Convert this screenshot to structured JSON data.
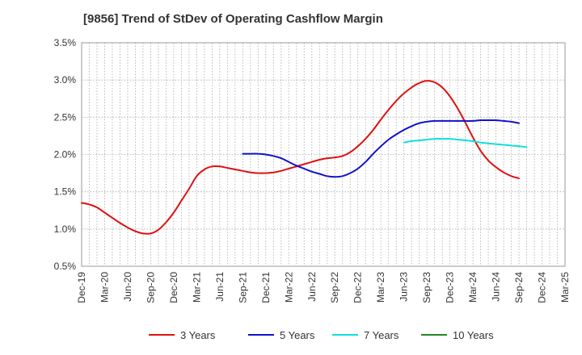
{
  "chart_data": {
    "type": "line",
    "title": "[9856]  Trend of StDev of Operating Cashflow Margin",
    "xlabel": "",
    "ylabel": "",
    "x_ticks": [
      "Dec-19",
      "Mar-20",
      "Jun-20",
      "Sep-20",
      "Dec-20",
      "Mar-21",
      "Jun-21",
      "Sep-21",
      "Dec-21",
      "Mar-22",
      "Jun-22",
      "Sep-22",
      "Dec-22",
      "Mar-23",
      "Jun-23",
      "Sep-23",
      "Dec-23",
      "Mar-24",
      "Jun-24",
      "Sep-24",
      "Dec-24",
      "Mar-25"
    ],
    "y_ticks": [
      "0.5%",
      "1.0%",
      "1.5%",
      "2.0%",
      "2.5%",
      "3.0%",
      "3.5%"
    ],
    "ylim": [
      0.5,
      3.5
    ],
    "grid": true,
    "legend_position": "bottom",
    "series": [
      {
        "name": "3 Years",
        "color": "#dd1111",
        "values": [
          [
            "Dec-19",
            1.35
          ],
          [
            "Jan-20",
            1.33
          ],
          [
            "Feb-20",
            1.29
          ],
          [
            "Mar-20",
            1.22
          ],
          [
            "Apr-20",
            1.15
          ],
          [
            "May-20",
            1.08
          ],
          [
            "Jun-20",
            1.02
          ],
          [
            "Jul-20",
            0.97
          ],
          [
            "Aug-20",
            0.94
          ],
          [
            "Sep-20",
            0.94
          ],
          [
            "Oct-20",
            0.99
          ],
          [
            "Nov-20",
            1.09
          ],
          [
            "Dec-20",
            1.22
          ],
          [
            "Jan-21",
            1.38
          ],
          [
            "Feb-21",
            1.54
          ],
          [
            "Mar-21",
            1.71
          ],
          [
            "Apr-21",
            1.8
          ],
          [
            "May-21",
            1.84
          ],
          [
            "Jun-21",
            1.84
          ],
          [
            "Jul-21",
            1.82
          ],
          [
            "Aug-21",
            1.8
          ],
          [
            "Sep-21",
            1.78
          ],
          [
            "Oct-21",
            1.76
          ],
          [
            "Nov-21",
            1.75
          ],
          [
            "Dec-21",
            1.75
          ],
          [
            "Jan-22",
            1.76
          ],
          [
            "Feb-22",
            1.78
          ],
          [
            "Mar-22",
            1.81
          ],
          [
            "Apr-22",
            1.84
          ],
          [
            "May-22",
            1.87
          ],
          [
            "Jun-22",
            1.9
          ],
          [
            "Jul-22",
            1.93
          ],
          [
            "Aug-22",
            1.95
          ],
          [
            "Sep-22",
            1.96
          ],
          [
            "Oct-22",
            1.98
          ],
          [
            "Nov-22",
            2.03
          ],
          [
            "Dec-22",
            2.11
          ],
          [
            "Jan-23",
            2.21
          ],
          [
            "Feb-23",
            2.33
          ],
          [
            "Mar-23",
            2.47
          ],
          [
            "Apr-23",
            2.6
          ],
          [
            "May-23",
            2.72
          ],
          [
            "Jun-23",
            2.82
          ],
          [
            "Jul-23",
            2.9
          ],
          [
            "Aug-23",
            2.96
          ],
          [
            "Sep-23",
            2.99
          ],
          [
            "Oct-23",
            2.97
          ],
          [
            "Nov-23",
            2.9
          ],
          [
            "Dec-23",
            2.78
          ],
          [
            "Jan-24",
            2.62
          ],
          [
            "Feb-24",
            2.43
          ],
          [
            "Mar-24",
            2.23
          ],
          [
            "Apr-24",
            2.05
          ],
          [
            "May-24",
            1.92
          ],
          [
            "Jun-24",
            1.83
          ],
          [
            "Jul-24",
            1.76
          ],
          [
            "Aug-24",
            1.71
          ],
          [
            "Sep-24",
            1.68
          ]
        ]
      },
      {
        "name": "5 Years",
        "color": "#1111cc",
        "values": [
          [
            "Sep-21",
            2.01
          ],
          [
            "Oct-21",
            2.01
          ],
          [
            "Nov-21",
            2.01
          ],
          [
            "Dec-21",
            2.0
          ],
          [
            "Jan-22",
            1.98
          ],
          [
            "Feb-22",
            1.95
          ],
          [
            "Mar-22",
            1.9
          ],
          [
            "Apr-22",
            1.85
          ],
          [
            "May-22",
            1.81
          ],
          [
            "Jun-22",
            1.77
          ],
          [
            "Jul-22",
            1.74
          ],
          [
            "Aug-22",
            1.71
          ],
          [
            "Sep-22",
            1.7
          ],
          [
            "Oct-22",
            1.71
          ],
          [
            "Nov-22",
            1.75
          ],
          [
            "Dec-22",
            1.81
          ],
          [
            "Jan-23",
            1.9
          ],
          [
            "Feb-23",
            2.01
          ],
          [
            "Mar-23",
            2.11
          ],
          [
            "Apr-23",
            2.2
          ],
          [
            "May-23",
            2.27
          ],
          [
            "Jun-23",
            2.33
          ],
          [
            "Jul-23",
            2.38
          ],
          [
            "Aug-23",
            2.42
          ],
          [
            "Sep-23",
            2.44
          ],
          [
            "Oct-23",
            2.45
          ],
          [
            "Nov-23",
            2.45
          ],
          [
            "Dec-23",
            2.45
          ],
          [
            "Jan-24",
            2.45
          ],
          [
            "Feb-24",
            2.45
          ],
          [
            "Mar-24",
            2.45
          ],
          [
            "Apr-24",
            2.46
          ],
          [
            "May-24",
            2.46
          ],
          [
            "Jun-24",
            2.46
          ],
          [
            "Jul-24",
            2.45
          ],
          [
            "Aug-24",
            2.44
          ],
          [
            "Sep-24",
            2.42
          ]
        ]
      },
      {
        "name": "7 Years",
        "color": "#11dddd",
        "values": [
          [
            "Jun-23",
            2.16
          ],
          [
            "Jul-23",
            2.18
          ],
          [
            "Aug-23",
            2.19
          ],
          [
            "Sep-23",
            2.2
          ],
          [
            "Oct-23",
            2.21
          ],
          [
            "Nov-23",
            2.21
          ],
          [
            "Dec-23",
            2.21
          ],
          [
            "Jan-24",
            2.2
          ],
          [
            "Feb-24",
            2.19
          ],
          [
            "Mar-24",
            2.18
          ],
          [
            "Apr-24",
            2.16
          ],
          [
            "May-24",
            2.15
          ],
          [
            "Jun-24",
            2.14
          ],
          [
            "Jul-24",
            2.13
          ],
          [
            "Aug-24",
            2.12
          ],
          [
            "Sep-24",
            2.11
          ],
          [
            "Oct-24",
            2.1
          ]
        ]
      },
      {
        "name": "10 Years",
        "color": "#228822",
        "values": []
      }
    ]
  }
}
